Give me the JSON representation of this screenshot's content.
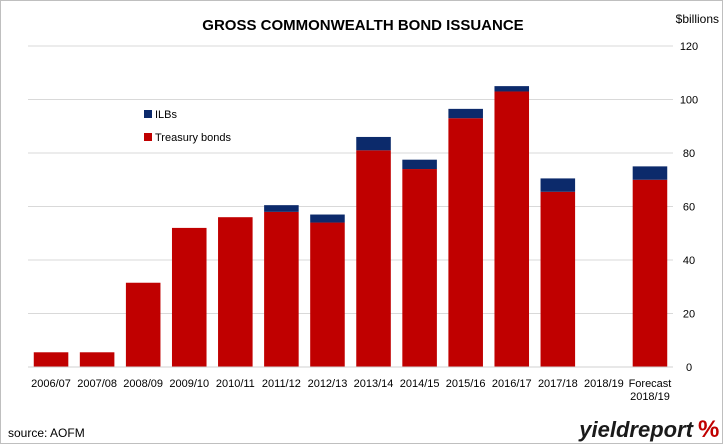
{
  "chart_data": {
    "type": "bar",
    "stacked": true,
    "title": "GROSS COMMONWEALTH BOND ISSUANCE",
    "unit_label": "$billions",
    "categories": [
      "2006/07",
      "2007/08",
      "2008/09",
      "2009/10",
      "2010/11",
      "2011/12",
      "2012/13",
      "2013/14",
      "2014/15",
      "2015/16",
      "2016/17",
      "2017/18",
      "2018/19",
      "Forecast\n2018/19"
    ],
    "series": [
      {
        "name": "Treasury bonds",
        "color": "#c00000",
        "values": [
          5.5,
          5.5,
          31.5,
          52,
          56,
          58,
          54,
          81,
          74,
          93,
          103,
          65.5,
          0,
          70
        ]
      },
      {
        "name": "ILBs",
        "color": "#0c2a6b",
        "values": [
          0,
          0,
          0,
          0,
          0,
          2.5,
          3,
          5,
          3.5,
          3.5,
          2,
          5,
          0,
          5
        ]
      }
    ],
    "ylim": [
      0,
      120
    ],
    "yticks": [
      0,
      20,
      40,
      60,
      80,
      100,
      120
    ],
    "y_axis_side": "right",
    "grid": true,
    "legend_position": "upper-left"
  },
  "footer": {
    "source": "source: AOFM",
    "brand_text": "yieldreport",
    "brand_symbol": "%"
  }
}
